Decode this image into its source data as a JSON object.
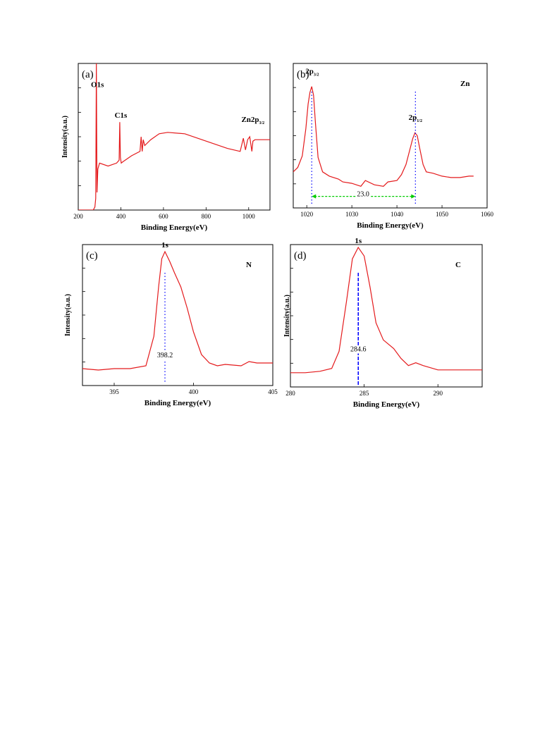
{
  "chart_data": [
    {
      "type": "line",
      "panel_label": "(a)",
      "xlabel": "Binding Energy(eV)",
      "ylabel": "Intensity(a.u.)",
      "xlim": [
        200,
        1100
      ],
      "xticks": [
        200,
        400,
        600,
        800,
        1000
      ],
      "ylim": [
        0,
        100
      ],
      "series": [
        {
          "color": "#e41a1c",
          "x": [
            200,
            270,
            278,
            282,
            285,
            288,
            292,
            300,
            340,
            380,
            392,
            395,
            398,
            402,
            410,
            450,
            490,
            495,
            500,
            505,
            512,
            540,
            580,
            620,
            700,
            800,
            900,
            960,
            975,
            985,
            995,
            1005,
            1015,
            1020,
            1030,
            1060,
            1100
          ],
          "y": [
            0,
            0,
            2,
            8,
            100,
            12,
            28,
            32,
            30,
            32,
            34,
            60,
            36,
            32,
            33,
            37,
            40,
            50,
            40,
            48,
            44,
            48,
            52,
            53,
            52,
            47,
            42,
            40,
            49,
            41,
            48,
            50,
            40,
            47,
            48,
            48,
            48
          ]
        }
      ],
      "annotations": [
        {
          "text": "O1s",
          "x": 290,
          "y": 84
        },
        {
          "text": "C1s",
          "x": 400,
          "y": 63
        },
        {
          "text": "Zn2p",
          "sub": "3/2",
          "x": 1020,
          "y": 60
        }
      ]
    },
    {
      "type": "line",
      "panel_label": "(b)",
      "element_label": "Zn",
      "xlabel": "Binding Energy(eV)",
      "ylabel": "",
      "xlim": [
        1017,
        1060
      ],
      "xticks": [
        1020,
        1030,
        1040,
        1050,
        1060
      ],
      "ylim": [
        0,
        100
      ],
      "series": [
        {
          "color": "#e41a1c",
          "x": [
            1017,
            1018,
            1019,
            1019.8,
            1020.3,
            1020.7,
            1021.1,
            1021.5,
            1021.9,
            1022.5,
            1023.5,
            1025,
            1027,
            1028,
            1030,
            1032,
            1033,
            1035,
            1037,
            1038,
            1040,
            1041,
            1042,
            1043,
            1043.5,
            1044,
            1044.5,
            1045,
            1045.8,
            1046.5,
            1048,
            1050,
            1052,
            1054,
            1056,
            1057
          ],
          "y": [
            25,
            28,
            36,
            55,
            72,
            80,
            84,
            78,
            60,
            35,
            25,
            22,
            20,
            18,
            17,
            15,
            19,
            16,
            15,
            18,
            19,
            23,
            30,
            42,
            48,
            52,
            50,
            42,
            30,
            25,
            24,
            22,
            21,
            21,
            22,
            22
          ]
        }
      ],
      "annotations": [
        {
          "text": "2p",
          "sub": "3/2",
          "x": 1021.2,
          "y": 93
        },
        {
          "text": "2p",
          "sub": "1/2",
          "x": 1044.1,
          "y": 61
        },
        {
          "text": "23.0",
          "x": 1032.5,
          "y": 8
        }
      ],
      "markers": [
        {
          "kind": "dotted-vline",
          "x": 1021.1,
          "color": "#0000ff"
        },
        {
          "kind": "dotted-vline",
          "x": 1044.1,
          "color": "#0000ff"
        },
        {
          "kind": "double-arrow",
          "x1": 1021.1,
          "x2": 1044.1,
          "y": 8,
          "color": "#00cc00"
        }
      ]
    },
    {
      "type": "line",
      "panel_label": "(c)",
      "element_label": "N",
      "xlabel": "Binding Energy(eV)",
      "ylabel": "Intensity(a.u.)",
      "xlim": [
        393,
        405
      ],
      "xticks": [
        395,
        400,
        405
      ],
      "ylim": [
        0,
        100
      ],
      "series": [
        {
          "color": "#e41a1c",
          "x": [
            393,
            394,
            395,
            396,
            397,
            397.5,
            397.8,
            398.0,
            398.2,
            398.5,
            398.8,
            399.2,
            399.6,
            400,
            400.5,
            401,
            401.5,
            402,
            403,
            403.5,
            404,
            405
          ],
          "y": [
            12,
            11,
            12,
            12,
            14,
            35,
            70,
            90,
            95,
            88,
            80,
            70,
            55,
            38,
            22,
            16,
            14,
            15,
            14,
            17,
            16,
            16
          ]
        }
      ],
      "annotations": [
        {
          "text": "1s",
          "x": 398.2,
          "y": 98
        },
        {
          "text": "398.2",
          "x": 398.2,
          "y": 20
        }
      ],
      "markers": [
        {
          "kind": "dotted-vline",
          "x": 398.2,
          "color": "#0000ff"
        }
      ]
    },
    {
      "type": "line",
      "panel_label": "(d)",
      "element_label": "C",
      "xlabel": "Binding Energy(eV)",
      "ylabel": "Intensity(a.u.)",
      "xlim": [
        280,
        293
      ],
      "xticks": [
        280,
        285,
        290
      ],
      "ylim": [
        0,
        100
      ],
      "series": [
        {
          "color": "#e41a1c",
          "x": [
            280,
            281,
            282,
            282.8,
            283.3,
            283.8,
            284.2,
            284.6,
            285.0,
            285.4,
            285.8,
            286.3,
            287,
            287.5,
            288,
            288.5,
            289,
            290,
            291,
            292,
            293
          ],
          "y": [
            10,
            10,
            11,
            13,
            25,
            60,
            90,
            98,
            92,
            70,
            45,
            33,
            27,
            20,
            15,
            17,
            15,
            12,
            12,
            12,
            12
          ]
        }
      ],
      "annotations": [
        {
          "text": "1s",
          "x": 284.6,
          "y": 101
        },
        {
          "text": "284.6",
          "x": 284.6,
          "y": 25
        }
      ],
      "markers": [
        {
          "kind": "dashed-vline",
          "x": 284.6,
          "color": "#0000ff"
        }
      ]
    }
  ]
}
